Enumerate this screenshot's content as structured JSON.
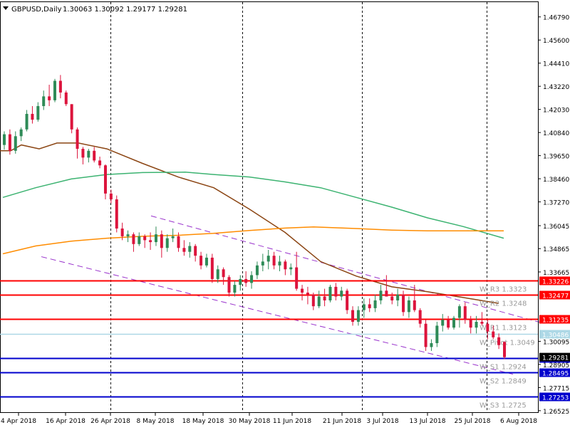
{
  "header": {
    "symbol_label": "GBPUSD,Daily",
    "ohlc": "1.30063 1.30092 1.29177 1.29281"
  },
  "chart_data": {
    "type": "candlestick",
    "price_range": [
      1.2641,
      1.4755
    ],
    "y_ticks": [
      "1.46790",
      "1.45600",
      "1.44410",
      "1.43220",
      "1.42030",
      "1.40840",
      "1.39650",
      "1.38460",
      "1.37270",
      "1.36045",
      "1.34865",
      "1.33665",
      "1.30095",
      "1.28905",
      "1.27715",
      "1.26525"
    ],
    "x_tick_labels": [
      "4 Apr 2018",
      "16 Apr 2018",
      "26 Apr 2018",
      "8 May 2018",
      "18 May 2018",
      "30 May 2018",
      "11 Jun 2018",
      "21 Jun 2018",
      "3 Jul 2018",
      "13 Jul 2018",
      "25 Jul 2018",
      "6 Aug 2018"
    ],
    "grid": "vertical dashed period separators",
    "candles": [
      [
        1.402,
        1.409,
        1.3995,
        1.4075
      ],
      [
        1.4075,
        1.41,
        1.397,
        1.399
      ],
      [
        1.399,
        1.409,
        1.3975,
        1.4065
      ],
      [
        1.4065,
        1.411,
        1.404,
        1.41
      ],
      [
        1.41,
        1.42,
        1.409,
        1.418
      ],
      [
        1.418,
        1.422,
        1.413,
        1.415
      ],
      [
        1.415,
        1.424,
        1.414,
        1.422
      ],
      [
        1.422,
        1.43,
        1.42,
        1.427
      ],
      [
        1.427,
        1.433,
        1.422,
        1.425
      ],
      [
        1.425,
        1.436,
        1.424,
        1.435
      ],
      [
        1.435,
        1.438,
        1.426,
        1.429
      ],
      [
        1.429,
        1.43,
        1.422,
        1.423
      ],
      [
        1.423,
        1.423,
        1.408,
        1.41
      ],
      [
        1.41,
        1.411,
        1.395,
        1.4
      ],
      [
        1.4,
        1.401,
        1.392,
        1.3955
      ],
      [
        1.3955,
        1.4,
        1.393,
        1.399
      ],
      [
        1.399,
        1.401,
        1.393,
        1.394
      ],
      [
        1.394,
        1.396,
        1.39,
        1.3915
      ],
      [
        1.3915,
        1.392,
        1.374,
        1.377
      ],
      [
        1.377,
        1.379,
        1.372,
        1.374
      ],
      [
        1.374,
        1.376,
        1.357,
        1.359
      ],
      [
        1.359,
        1.362,
        1.353,
        1.355
      ],
      [
        1.355,
        1.358,
        1.352,
        1.356
      ],
      [
        1.356,
        1.357,
        1.347,
        1.351
      ],
      [
        1.351,
        1.357,
        1.35,
        1.355
      ],
      [
        1.355,
        1.356,
        1.349,
        1.353
      ],
      [
        1.353,
        1.357,
        1.348,
        1.352
      ],
      [
        1.352,
        1.36,
        1.35,
        1.356
      ],
      [
        1.356,
        1.358,
        1.344,
        1.349
      ],
      [
        1.349,
        1.356,
        1.347,
        1.354
      ],
      [
        1.354,
        1.359,
        1.352,
        1.355
      ],
      [
        1.355,
        1.357,
        1.347,
        1.349
      ],
      [
        1.349,
        1.353,
        1.345,
        1.347
      ],
      [
        1.347,
        1.352,
        1.344,
        1.35
      ],
      [
        1.35,
        1.351,
        1.342,
        1.345
      ],
      [
        1.345,
        1.347,
        1.338,
        1.34
      ],
      [
        1.34,
        1.346,
        1.339,
        1.344
      ],
      [
        1.344,
        1.346,
        1.331,
        1.333
      ],
      [
        1.333,
        1.34,
        1.331,
        1.338
      ],
      [
        1.338,
        1.339,
        1.33,
        1.334
      ],
      [
        1.334,
        1.335,
        1.324,
        1.326
      ],
      [
        1.326,
        1.332,
        1.324,
        1.33
      ],
      [
        1.33,
        1.335,
        1.327,
        1.333
      ],
      [
        1.333,
        1.337,
        1.329,
        1.331
      ],
      [
        1.331,
        1.337,
        1.328,
        1.335
      ],
      [
        1.335,
        1.342,
        1.333,
        1.34
      ],
      [
        1.34,
        1.346,
        1.337,
        1.342
      ],
      [
        1.342,
        1.348,
        1.338,
        1.345
      ],
      [
        1.345,
        1.347,
        1.338,
        1.34
      ],
      [
        1.34,
        1.345,
        1.337,
        1.342
      ],
      [
        1.342,
        1.343,
        1.335,
        1.338
      ],
      [
        1.338,
        1.341,
        1.335,
        1.339
      ],
      [
        1.339,
        1.347,
        1.327,
        1.328
      ],
      [
        1.328,
        1.33,
        1.322,
        1.326
      ],
      [
        1.326,
        1.329,
        1.32,
        1.325
      ],
      [
        1.325,
        1.326,
        1.317,
        1.319
      ],
      [
        1.319,
        1.327,
        1.318,
        1.324
      ],
      [
        1.324,
        1.328,
        1.319,
        1.322
      ],
      [
        1.322,
        1.33,
        1.321,
        1.329
      ],
      [
        1.329,
        1.331,
        1.322,
        1.324
      ],
      [
        1.324,
        1.329,
        1.322,
        1.327
      ],
      [
        1.327,
        1.328,
        1.315,
        1.317
      ],
      [
        1.317,
        1.319,
        1.309,
        1.311
      ],
      [
        1.311,
        1.319,
        1.309,
        1.317
      ],
      [
        1.317,
        1.323,
        1.313,
        1.32
      ],
      [
        1.32,
        1.323,
        1.316,
        1.318
      ],
      [
        1.318,
        1.325,
        1.316,
        1.322
      ],
      [
        1.322,
        1.33,
        1.32,
        1.327
      ],
      [
        1.327,
        1.335,
        1.324,
        1.324
      ],
      [
        1.324,
        1.326,
        1.32,
        1.322
      ],
      [
        1.322,
        1.328,
        1.319,
        1.325
      ],
      [
        1.325,
        1.327,
        1.314,
        1.316
      ],
      [
        1.316,
        1.324,
        1.313,
        1.322
      ],
      [
        1.322,
        1.33,
        1.316,
        1.317
      ],
      [
        1.317,
        1.318,
        1.308,
        1.31
      ],
      [
        1.31,
        1.312,
        1.296,
        1.298
      ],
      [
        1.298,
        1.302,
        1.296,
        1.3
      ],
      [
        1.3,
        1.311,
        1.298,
        1.309
      ],
      [
        1.309,
        1.315,
        1.306,
        1.312
      ],
      [
        1.312,
        1.314,
        1.307,
        1.308
      ],
      [
        1.308,
        1.314,
        1.307,
        1.313
      ],
      [
        1.313,
        1.32,
        1.308,
        1.319
      ],
      [
        1.319,
        1.321,
        1.31,
        1.312
      ],
      [
        1.312,
        1.314,
        1.305,
        1.308
      ],
      [
        1.308,
        1.314,
        1.305,
        1.311
      ],
      [
        1.311,
        1.316,
        1.309,
        1.31
      ],
      [
        1.31,
        1.312,
        1.302,
        1.306
      ],
      [
        1.306,
        1.309,
        1.302,
        1.303
      ],
      [
        1.303,
        1.305,
        1.297,
        1.299
      ],
      [
        1.3006,
        1.3009,
        1.2918,
        1.2928
      ]
    ],
    "moving_averages": [
      {
        "color": "#8b4513",
        "points": [
          [
            0,
            1.399
          ],
          [
            15,
            1.399
          ],
          [
            30,
            1.402
          ],
          [
            55,
            1.4
          ],
          [
            80,
            1.403
          ],
          [
            110,
            1.403
          ],
          [
            150,
            1.4
          ],
          [
            200,
            1.3925
          ],
          [
            250,
            1.3855
          ],
          [
            300,
            1.38
          ],
          [
            350,
            1.369
          ],
          [
            400,
            1.357
          ],
          [
            450,
            1.342
          ],
          [
            500,
            1.3345
          ],
          [
            550,
            1.329
          ],
          [
            600,
            1.3265
          ],
          [
            650,
            1.3235
          ],
          [
            700,
            1.3205
          ]
        ]
      },
      {
        "color": "#3cb371",
        "points": [
          [
            4,
            1.375
          ],
          [
            50,
            1.38
          ],
          [
            100,
            1.3845
          ],
          [
            150,
            1.3868
          ],
          [
            200,
            1.3878
          ],
          [
            260,
            1.388
          ],
          [
            300,
            1.3868
          ],
          [
            350,
            1.3855
          ],
          [
            400,
            1.383
          ],
          [
            450,
            1.38
          ],
          [
            500,
            1.375
          ],
          [
            550,
            1.37
          ],
          [
            600,
            1.3645
          ],
          [
            650,
            1.36
          ],
          [
            707,
            1.354
          ]
        ]
      },
      {
        "color": "#ff8c00",
        "points": [
          [
            4,
            1.346
          ],
          [
            50,
            1.35
          ],
          [
            100,
            1.3525
          ],
          [
            150,
            1.354
          ],
          [
            200,
            1.355
          ],
          [
            250,
            1.3555
          ],
          [
            300,
            1.3565
          ],
          [
            350,
            1.358
          ],
          [
            400,
            1.3592
          ],
          [
            440,
            1.3598
          ],
          [
            500,
            1.359
          ],
          [
            550,
            1.3582
          ],
          [
            600,
            1.3578
          ],
          [
            650,
            1.3578
          ],
          [
            707,
            1.3578
          ]
        ]
      }
    ],
    "trend_channel": [
      {
        "from": [
          212,
          1.3655
        ],
        "to": [
          760,
          1.3105
        ]
      },
      {
        "from": [
          58,
          1.3445
        ],
        "to": [
          720,
          1.284
        ]
      }
    ],
    "levels": [
      {
        "name": "W_R3",
        "text": "W_R3 1.3323",
        "value": 1.3323,
        "badge": "1.33226",
        "color": "#ff0000",
        "thick": true
      },
      {
        "name": "W_R2",
        "text": "W_R2 1.3248",
        "value": 1.3248,
        "badge": "1.32477",
        "color": "#ff0000",
        "thick": true
      },
      {
        "name": "W_R1",
        "text": "W_R1 1.3123",
        "value": 1.3123,
        "badge": "1.31235",
        "color": "#ff0000",
        "thick": true
      },
      {
        "name": "W_Pivot",
        "text": "W_Pivot 1.3049",
        "value": 1.3049,
        "badge": "1.30486",
        "color": "#add8e6",
        "thick": false
      },
      {
        "name": "W_S1",
        "text": "W_S1 1.2924",
        "value": 1.2924,
        "badge": "1.29244",
        "color": "#0000cd",
        "thick": true
      },
      {
        "name": "W_S2",
        "text": "W_S2 1.2849",
        "value": 1.2849,
        "badge": "1.28495",
        "color": "#0000cd",
        "thick": true
      },
      {
        "name": "W_S3",
        "text": "W_S3 1.2725",
        "value": 1.2725,
        "badge": "1.27253",
        "color": "#0000cd",
        "thick": true
      }
    ],
    "colors": {
      "bull": "#2e8b57",
      "bear": "#dc143c",
      "text": "#000000",
      "level_text": "#9a9a9a",
      "price_badge": "#000000"
    },
    "current_price": {
      "value": 1.29281,
      "badge": "1.29281"
    }
  }
}
